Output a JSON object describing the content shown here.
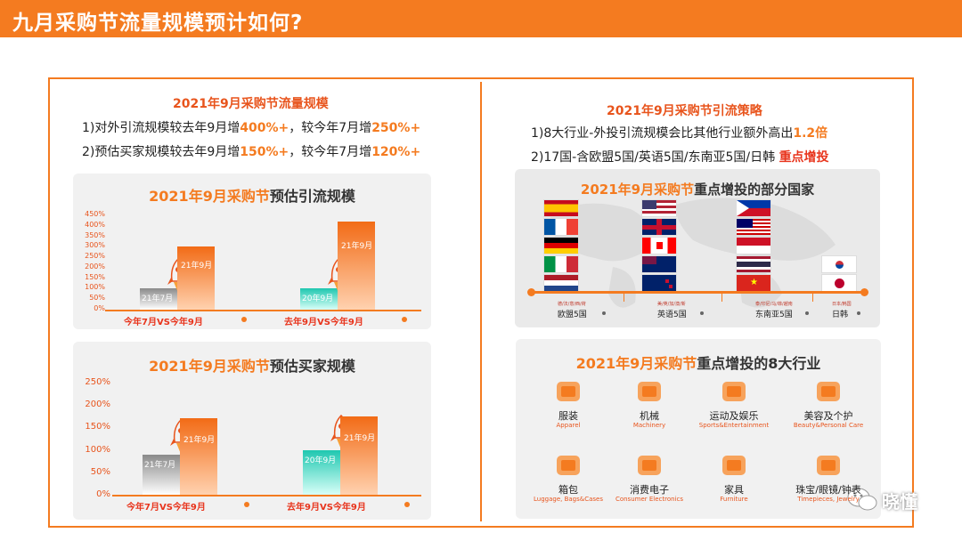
{
  "page_title": "九月采购节流量规模预计如何?",
  "left": {
    "heading": "2021年9月采购节流量规模",
    "line1": {
      "pre": "1)对外引流规模较去年9月增",
      "v1": "400%+",
      "mid": "，较今年7月增",
      "v2": "250%+"
    },
    "line2": {
      "pre": "2)预估买家规模较去年9月增",
      "v1": "150%+",
      "mid": "，较今年7月增",
      "v2": "120%+"
    },
    "chart1": {
      "title_orange": "2021年9月采购节",
      "title_rest": "预估引流规模",
      "y_ticks": [
        "450%",
        "400%",
        "350%",
        "300%",
        "250%",
        "200%",
        "150%",
        "100%",
        "50%",
        "0%"
      ],
      "groups": [
        {
          "category": "今年7月VS今年9月",
          "bars": [
            {
              "label": "21年7月",
              "value": 100
            },
            {
              "label": "21年9月",
              "value": 300
            }
          ]
        },
        {
          "category": "去年9月VS今年9月",
          "bars": [
            {
              "label": "20年9月",
              "value": 100
            },
            {
              "label": "21年9月",
              "value": 420
            }
          ]
        }
      ]
    },
    "chart2": {
      "title_orange": "2021年9月采购节",
      "title_rest": "预估买家规模",
      "y_ticks": [
        "250%",
        "200%",
        "150%",
        "100%",
        "50%",
        "0%"
      ],
      "groups": [
        {
          "category": "今年7月VS今年9月",
          "bars": [
            {
              "label": "21年7月",
              "value": 90
            },
            {
              "label": "21年9月",
              "value": 170
            }
          ]
        },
        {
          "category": "去年9月VS今年9月",
          "bars": [
            {
              "label": "20年9月",
              "value": 100
            },
            {
              "label": "21年9月",
              "value": 175
            }
          ]
        }
      ]
    }
  },
  "right": {
    "heading": "2021年9月采购节引流策略",
    "line1": {
      "pre": "1)8大行业-外投引流规模会比其他行业额外高出",
      "v": "1.2倍"
    },
    "line2": {
      "pre": "2)17国-含欧盟5国/英语5国/东南亚5国/日韩 ",
      "v": "重点增投"
    },
    "map": {
      "title_orange": "2021年9月采购节",
      "title_rest": "重点增投的部分国家",
      "regions": [
        {
          "name": "欧盟5国",
          "sub": "德/法/意/西/荷"
        },
        {
          "name": "英语5国",
          "sub": "美/英/加/澳/新"
        },
        {
          "name": "东南亚5国",
          "sub": "泰/印尼/马/菲/越南"
        },
        {
          "name": "日韩",
          "sub": "日本/韩国"
        }
      ]
    },
    "industries": {
      "title_orange": "2021年9月采购节",
      "title_rest": "重点增投的8大行业",
      "items": [
        {
          "cn": "服装",
          "en": "Apparel",
          "icon": "apparel-icon"
        },
        {
          "cn": "机械",
          "en": "Machinery",
          "icon": "machinery-icon"
        },
        {
          "cn": "运动及娱乐",
          "en": "Sports&Entertainment",
          "icon": "sports-icon"
        },
        {
          "cn": "美容及个护",
          "en": "Beauty&Personal Care",
          "icon": "beauty-icon"
        },
        {
          "cn": "箱包",
          "en": "Luggage, Bags&Cases",
          "icon": "luggage-icon"
        },
        {
          "cn": "消费电子",
          "en": "Consumer Electronics",
          "icon": "electronics-icon"
        },
        {
          "cn": "家具",
          "en": "Furniture",
          "icon": "furniture-icon"
        },
        {
          "cn": "珠宝/眼镜/钟表",
          "en": "Timepieces, Jewelry",
          "icon": "jewelry-icon"
        }
      ]
    }
  },
  "watermark": "晓懂"
}
